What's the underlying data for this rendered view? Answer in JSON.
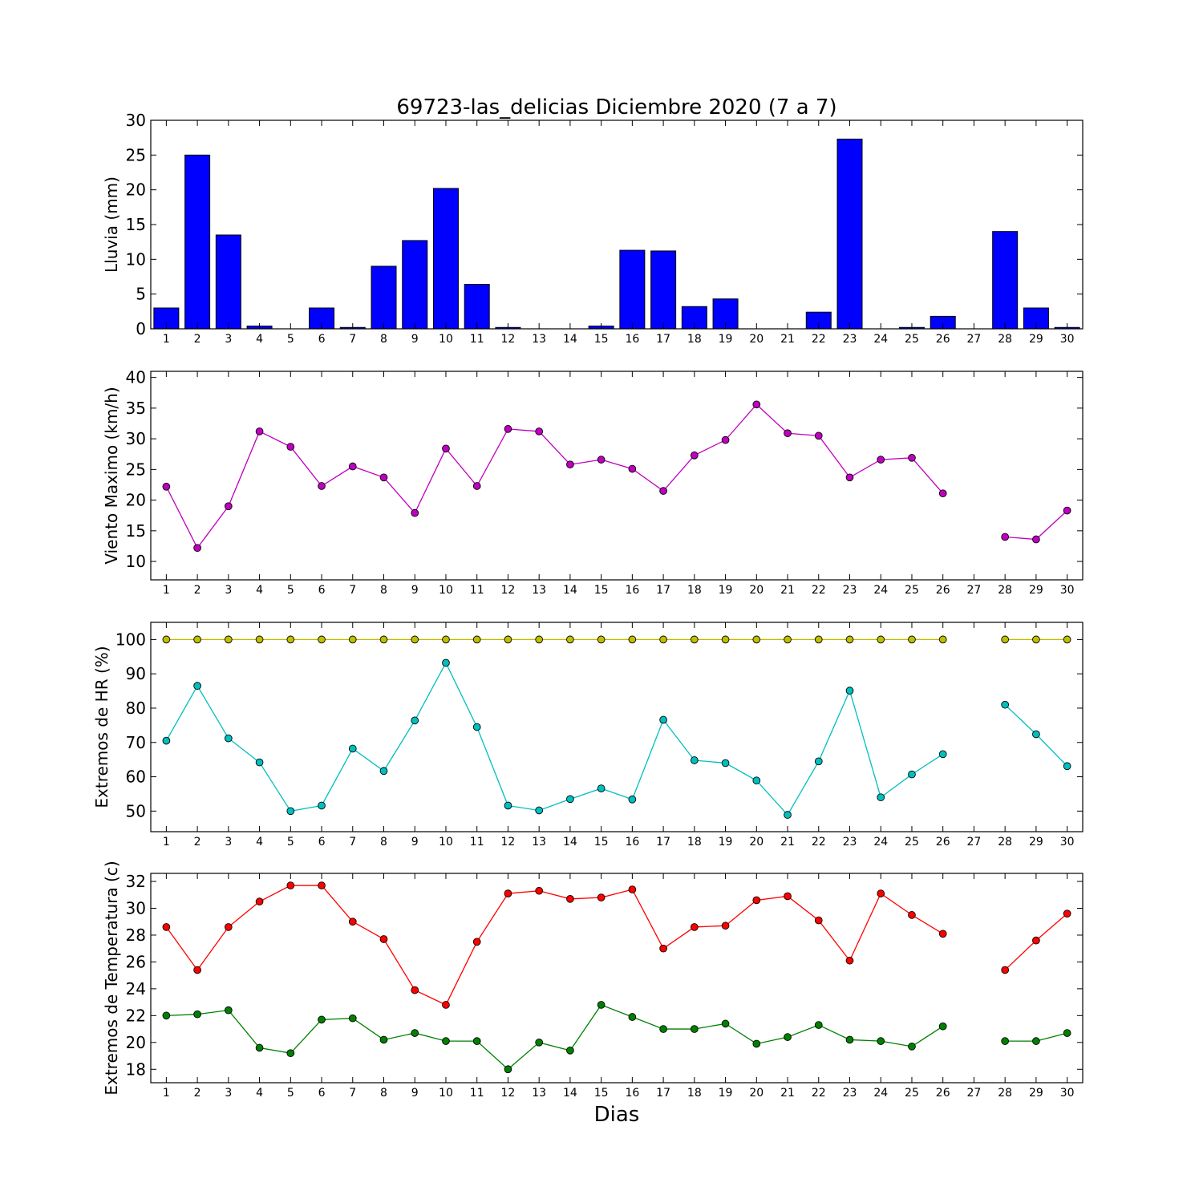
{
  "title": "69723-las_delicias Diciembre 2020  (7 a 7)",
  "xlabel": "Dias",
  "colors": {
    "rain": "#0000ff",
    "wind": "#bf00bf",
    "hr_max": "#bfbf00",
    "hr_min": "#00bfbf",
    "temp_max": "#ff0000",
    "temp_min": "#008000"
  },
  "chart_data": [
    {
      "type": "bar",
      "ylabel": "Lluvia (mm)",
      "ylim": [
        0,
        30
      ],
      "yticks": [
        0,
        5,
        10,
        15,
        20,
        25,
        30
      ],
      "categories": [
        "1",
        "2",
        "3",
        "4",
        "5",
        "6",
        "7",
        "8",
        "9",
        "10",
        "11",
        "12",
        "13",
        "14",
        "15",
        "16",
        "17",
        "18",
        "19",
        "20",
        "21",
        "22",
        "23",
        "24",
        "25",
        "26",
        "27",
        "28",
        "29",
        "30"
      ],
      "series": [
        {
          "color_key": "rain",
          "values": [
            3.0,
            25.0,
            13.5,
            0.4,
            0.0,
            3.0,
            0.2,
            9.0,
            12.7,
            20.2,
            6.4,
            0.2,
            0.0,
            0.0,
            0.4,
            11.3,
            11.2,
            3.2,
            4.3,
            0.0,
            0.0,
            2.4,
            27.3,
            0.0,
            0.2,
            1.8,
            null,
            14.0,
            3.0,
            0.2
          ]
        }
      ]
    },
    {
      "type": "line",
      "ylabel": "Viento Maximo (km/h)",
      "ylim": [
        7,
        41
      ],
      "yticks": [
        10,
        15,
        20,
        25,
        30,
        35,
        40
      ],
      "categories": [
        "1",
        "2",
        "3",
        "4",
        "5",
        "6",
        "7",
        "8",
        "9",
        "10",
        "11",
        "12",
        "13",
        "14",
        "15",
        "16",
        "17",
        "18",
        "19",
        "20",
        "21",
        "22",
        "23",
        "24",
        "25",
        "26",
        "27",
        "28",
        "29",
        "30"
      ],
      "series": [
        {
          "color_key": "wind",
          "values": [
            22.2,
            12.2,
            19.0,
            31.2,
            28.7,
            22.3,
            25.5,
            23.7,
            17.9,
            28.4,
            22.3,
            31.6,
            31.2,
            25.8,
            26.6,
            25.1,
            21.5,
            27.3,
            29.8,
            35.6,
            30.9,
            30.5,
            23.7,
            26.6,
            26.9,
            21.1,
            null,
            14.0,
            13.6,
            18.3
          ]
        }
      ]
    },
    {
      "type": "line",
      "ylabel": "Extremos de HR (%)",
      "ylim": [
        44,
        105
      ],
      "yticks": [
        50,
        60,
        70,
        80,
        90,
        100
      ],
      "categories": [
        "1",
        "2",
        "3",
        "4",
        "5",
        "6",
        "7",
        "8",
        "9",
        "10",
        "11",
        "12",
        "13",
        "14",
        "15",
        "16",
        "17",
        "18",
        "19",
        "20",
        "21",
        "22",
        "23",
        "24",
        "25",
        "26",
        "27",
        "28",
        "29",
        "30"
      ],
      "series": [
        {
          "color_key": "hr_max",
          "values": [
            100,
            100,
            100,
            100,
            100,
            100,
            100,
            100,
            100,
            100,
            100,
            100,
            100,
            100,
            100,
            100,
            100,
            100,
            100,
            100,
            100,
            100,
            100,
            100,
            100,
            100,
            null,
            100,
            100,
            100
          ]
        },
        {
          "color_key": "hr_min",
          "values": [
            70.5,
            86.5,
            71.2,
            64.2,
            50.0,
            51.6,
            68.2,
            61.7,
            76.4,
            93.2,
            74.5,
            51.6,
            50.2,
            53.5,
            56.6,
            53.4,
            76.6,
            64.8,
            64.0,
            58.9,
            48.9,
            64.5,
            85.1,
            54.0,
            60.7,
            66.6,
            null,
            81.0,
            72.4,
            63.1
          ]
        }
      ]
    },
    {
      "type": "line",
      "ylabel": "Extremos de Temperatura (c)",
      "ylim": [
        17,
        32.6
      ],
      "yticks": [
        18,
        20,
        22,
        24,
        26,
        28,
        30,
        32
      ],
      "categories": [
        "1",
        "2",
        "3",
        "4",
        "5",
        "6",
        "7",
        "8",
        "9",
        "10",
        "11",
        "12",
        "13",
        "14",
        "15",
        "16",
        "17",
        "18",
        "19",
        "20",
        "21",
        "22",
        "23",
        "24",
        "25",
        "26",
        "27",
        "28",
        "29",
        "30"
      ],
      "series": [
        {
          "color_key": "temp_max",
          "values": [
            28.6,
            25.4,
            28.6,
            30.5,
            31.7,
            31.7,
            29.0,
            27.7,
            23.9,
            22.8,
            27.5,
            31.1,
            31.3,
            30.7,
            30.8,
            31.4,
            27.0,
            28.6,
            28.7,
            30.6,
            30.9,
            29.1,
            26.1,
            31.1,
            29.5,
            28.1,
            null,
            25.4,
            27.6,
            29.6
          ]
        },
        {
          "color_key": "temp_min",
          "values": [
            22.0,
            22.1,
            22.4,
            19.6,
            19.2,
            21.7,
            21.8,
            20.2,
            20.7,
            20.1,
            20.1,
            18.0,
            20.0,
            19.4,
            22.8,
            21.9,
            21.0,
            21.0,
            21.4,
            19.9,
            20.4,
            21.3,
            20.2,
            20.1,
            19.7,
            21.2,
            null,
            20.1,
            20.1,
            20.7
          ]
        }
      ]
    }
  ]
}
